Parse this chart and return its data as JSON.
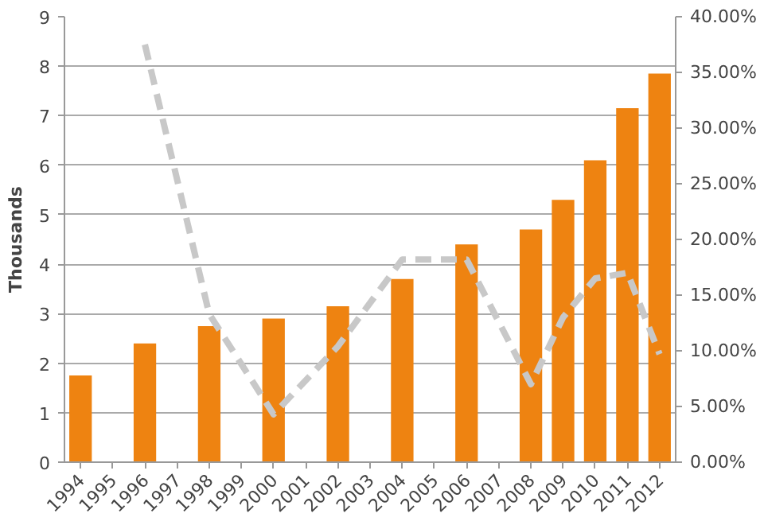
{
  "chart_data": {
    "type": "bar",
    "ylabel": "Thousands",
    "categories": [
      "1994",
      "1995",
      "1996",
      "1997",
      "1998",
      "1999",
      "2000",
      "2001",
      "2002",
      "2003",
      "2004",
      "2005",
      "2006",
      "2007",
      "2008",
      "2009",
      "2010",
      "2011",
      "2012"
    ],
    "series": [
      {
        "color": "#ee8311",
        "values": [
          1.75,
          null,
          2.4,
          null,
          2.75,
          null,
          2.9,
          null,
          3.15,
          null,
          3.7,
          null,
          4.4,
          null,
          4.7,
          5.3,
          6.1,
          7.15,
          7.85
        ]
      },
      {
        "type": "line",
        "axis": "y2",
        "color": "#c8c8c8",
        "line_style": "dashed",
        "values": [
          null,
          null,
          37.5,
          null,
          13.3,
          null,
          4.3,
          null,
          10.4,
          null,
          18.2,
          null,
          18.2,
          null,
          7,
          13,
          16.5,
          17,
          9.7
        ]
      }
    ],
    "ylim": [
      0,
      9
    ],
    "yticks": [
      0,
      1,
      2,
      3,
      4,
      5,
      6,
      7,
      8,
      9
    ],
    "y2lim": [
      0,
      40
    ],
    "y2ticks": [
      {
        "value": 0,
        "label": "0.00%"
      },
      {
        "value": 5,
        "label": "5.00%"
      },
      {
        "value": 10,
        "label": "10.00%"
      },
      {
        "value": 15,
        "label": "15.00%"
      },
      {
        "value": 20,
        "label": "20.00%"
      },
      {
        "value": 25,
        "label": "25.00%"
      },
      {
        "value": 30,
        "label": "30.00%"
      },
      {
        "value": 35,
        "label": "35.00%"
      },
      {
        "value": 40,
        "label": "40.00%"
      }
    ],
    "grid": "y"
  }
}
